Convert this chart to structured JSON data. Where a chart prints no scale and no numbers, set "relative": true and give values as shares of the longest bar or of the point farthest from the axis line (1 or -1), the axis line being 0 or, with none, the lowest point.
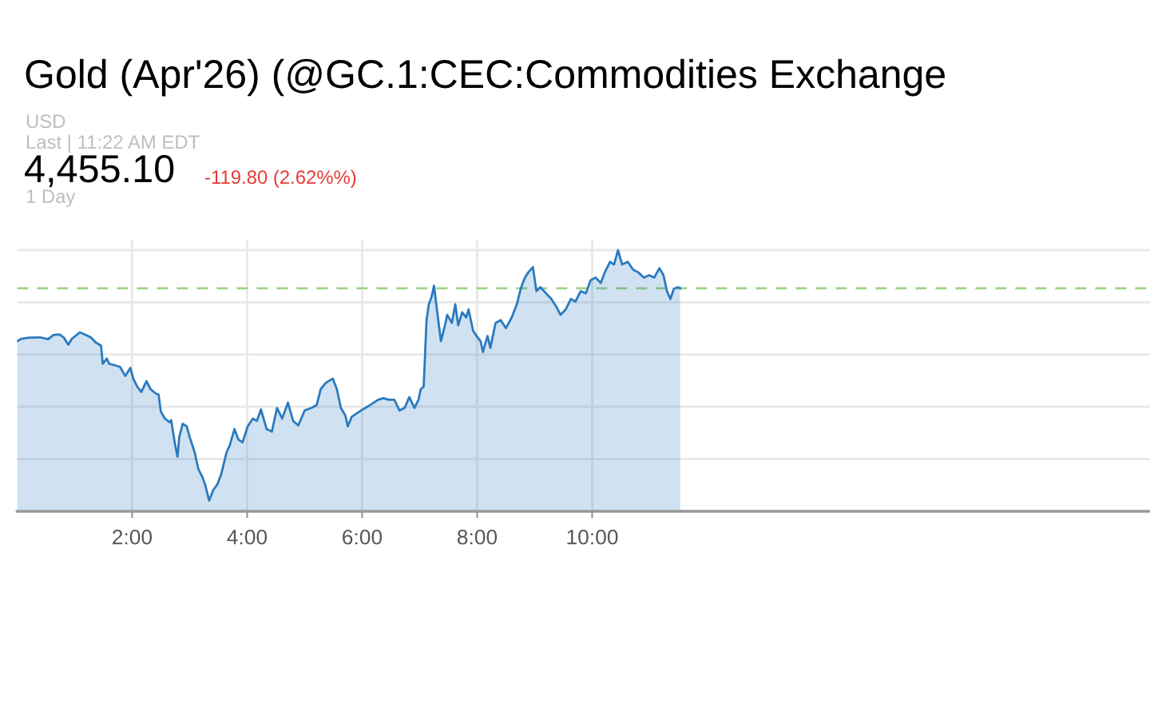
{
  "chart_data": {
    "type": "area",
    "title": "Gold (Apr'26) (@GC.1:CEC:Commodities Exchange",
    "subtitle": "USD",
    "annotations": [
      "Last | 11:22 AM EDT",
      "4,455.10",
      "-119.80 (2.62%%)",
      "1 Day"
    ],
    "relative": true,
    "grid": true,
    "tick_labels": "x",
    "xlim": [
      0,
      19.7
    ],
    "xticks": [
      {
        "value": 2,
        "label": "2:00"
      },
      {
        "value": 4,
        "label": "4:00"
      },
      {
        "value": 6,
        "label": "6:00"
      },
      {
        "value": 8,
        "label": "8:00"
      },
      {
        "value": 10,
        "label": "10:00"
      }
    ],
    "ref_lines": [
      {
        "axis": "y",
        "value": 0.854,
        "color": "#9fd38a",
        "line_style": "dashed"
      }
    ],
    "x": [
      0.0,
      0.07,
      0.21,
      0.4,
      0.54,
      0.63,
      0.74,
      0.81,
      0.89,
      0.95,
      1.09,
      1.18,
      1.28,
      1.37,
      1.46,
      1.49,
      1.56,
      1.6,
      1.7,
      1.79,
      1.88,
      1.97,
      2.02,
      2.09,
      2.16,
      2.25,
      2.32,
      2.41,
      2.46,
      2.5,
      2.57,
      2.65,
      2.68,
      2.74,
      2.79,
      2.82,
      2.88,
      2.95,
      3.0,
      3.09,
      3.15,
      3.22,
      3.27,
      3.34,
      3.41,
      3.48,
      3.55,
      3.64,
      3.7,
      3.78,
      3.85,
      3.92,
      4.01,
      4.1,
      4.17,
      4.24,
      4.34,
      4.43,
      4.52,
      4.61,
      4.71,
      4.8,
      4.89,
      5.0,
      5.12,
      5.21,
      5.28,
      5.37,
      5.49,
      5.56,
      5.63,
      5.71,
      5.75,
      5.82,
      5.98,
      6.14,
      6.28,
      6.37,
      6.46,
      6.56,
      6.65,
      6.74,
      6.82,
      6.91,
      6.98,
      7.02,
      7.07,
      7.12,
      7.16,
      7.21,
      7.25,
      7.3,
      7.37,
      7.44,
      7.48,
      7.56,
      7.62,
      7.67,
      7.74,
      7.81,
      7.85,
      7.93,
      7.99,
      8.06,
      8.1,
      8.18,
      8.23,
      8.32,
      8.41,
      8.5,
      8.6,
      8.69,
      8.76,
      8.83,
      8.89,
      8.97,
      9.03,
      9.1,
      9.2,
      9.29,
      9.38,
      9.45,
      9.54,
      9.63,
      9.71,
      9.8,
      9.89,
      9.97,
      10.06,
      10.15,
      10.22,
      10.31,
      10.38,
      10.45,
      10.52,
      10.62,
      10.71,
      10.8,
      10.9,
      10.99,
      11.08,
      11.17,
      11.24,
      11.3,
      11.36,
      11.42,
      11.49,
      11.53
    ],
    "series": [
      {
        "color": "#2a7abf",
        "values": [
          0.651,
          0.66,
          0.665,
          0.666,
          0.659,
          0.675,
          0.677,
          0.666,
          0.638,
          0.66,
          0.685,
          0.677,
          0.666,
          0.646,
          0.634,
          0.565,
          0.585,
          0.565,
          0.559,
          0.553,
          0.518,
          0.549,
          0.508,
          0.477,
          0.457,
          0.498,
          0.468,
          0.451,
          0.447,
          0.382,
          0.355,
          0.341,
          0.349,
          0.264,
          0.209,
          0.285,
          0.335,
          0.325,
          0.285,
          0.224,
          0.163,
          0.132,
          0.102,
          0.041,
          0.081,
          0.102,
          0.142,
          0.224,
          0.254,
          0.315,
          0.274,
          0.264,
          0.325,
          0.355,
          0.346,
          0.39,
          0.315,
          0.305,
          0.396,
          0.355,
          0.416,
          0.346,
          0.329,
          0.386,
          0.396,
          0.407,
          0.468,
          0.492,
          0.508,
          0.468,
          0.396,
          0.366,
          0.325,
          0.362,
          0.386,
          0.407,
          0.427,
          0.433,
          0.427,
          0.427,
          0.386,
          0.396,
          0.437,
          0.396,
          0.427,
          0.468,
          0.477,
          0.732,
          0.793,
          0.823,
          0.864,
          0.773,
          0.651,
          0.712,
          0.752,
          0.721,
          0.793,
          0.712,
          0.762,
          0.742,
          0.773,
          0.691,
          0.671,
          0.651,
          0.61,
          0.671,
          0.626,
          0.721,
          0.732,
          0.701,
          0.742,
          0.793,
          0.854,
          0.895,
          0.915,
          0.935,
          0.843,
          0.858,
          0.834,
          0.813,
          0.782,
          0.752,
          0.773,
          0.813,
          0.803,
          0.843,
          0.834,
          0.884,
          0.895,
          0.874,
          0.915,
          0.955,
          0.945,
          1.0,
          0.945,
          0.955,
          0.925,
          0.915,
          0.895,
          0.904,
          0.895,
          0.931,
          0.904,
          0.843,
          0.813,
          0.852,
          0.858,
          0.854
        ]
      }
    ]
  }
}
